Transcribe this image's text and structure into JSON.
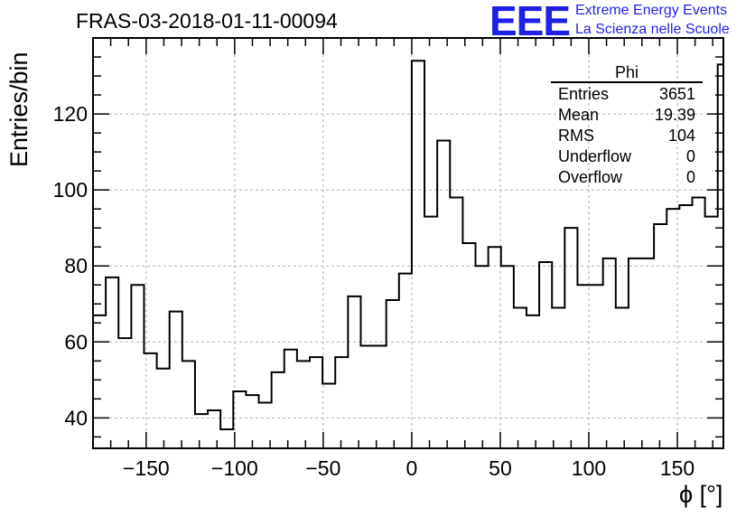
{
  "title": "FRAS-03-2018-01-11-00094",
  "branding": {
    "logo_text": "EEE",
    "line1": "Extreme Energy Events",
    "line2": "La Scienza nelle Scuole",
    "color": "#1f1fe6"
  },
  "stats_box": {
    "name": "Phi",
    "rows": [
      {
        "label": "Entries",
        "value": "3651"
      },
      {
        "label": "Mean",
        "value": "19.39"
      },
      {
        "label": "RMS",
        "value": "104"
      },
      {
        "label": "Underflow",
        "value": "0"
      },
      {
        "label": "Overflow",
        "value": "0"
      }
    ]
  },
  "chart_data": {
    "type": "histogram",
    "xlabel": "ϕ [°]",
    "ylabel": "Entries/bin",
    "xlim": [
      -180,
      176
    ],
    "ylim": [
      32,
      140
    ],
    "xticks": [
      -150,
      -100,
      -50,
      0,
      50,
      100,
      150
    ],
    "yticks": [
      40,
      60,
      80,
      100,
      120
    ],
    "grid": true,
    "bin_width": 7.2,
    "x_start": -180,
    "values": [
      67,
      77,
      61,
      75,
      57,
      53,
      68,
      55,
      41,
      42,
      37,
      47,
      46,
      44,
      52,
      58,
      55,
      56,
      49,
      56,
      72,
      59,
      59,
      71,
      78,
      134,
      93,
      113,
      98,
      86,
      80,
      85,
      80,
      69,
      67,
      81,
      69,
      90,
      75,
      75,
      82,
      69,
      82,
      82,
      91,
      95,
      96,
      98,
      93,
      133
    ]
  }
}
